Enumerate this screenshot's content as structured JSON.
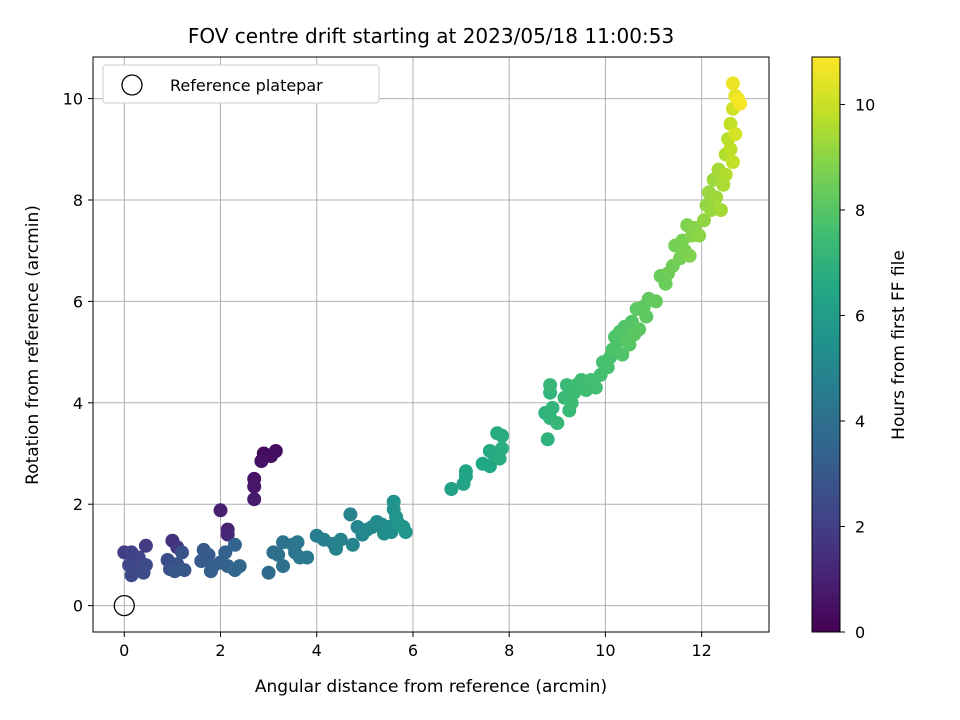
{
  "chart_data": {
    "type": "scatter",
    "title": "FOV centre drift starting at 2023/05/18 11:00:53",
    "xlabel": "Angular distance from reference (arcmin)",
    "ylabel": "Rotation from reference (arcmin)",
    "xlim": [
      -0.65,
      13.4
    ],
    "ylim": [
      -0.52,
      10.82
    ],
    "xticks": [
      0,
      2,
      4,
      6,
      8,
      10,
      12
    ],
    "yticks": [
      0,
      2,
      4,
      6,
      8,
      10
    ],
    "grid": true,
    "legend": {
      "placement": "upper-left",
      "entries": [
        "Reference platepar"
      ]
    },
    "colorbar": {
      "label": "Hours from first FF file",
      "colormap": "viridis",
      "range": [
        0,
        10.9
      ],
      "ticks": [
        0,
        2,
        4,
        6,
        8,
        10
      ]
    },
    "reference_point": {
      "x": 0,
      "y": 0,
      "label": "Reference platepar"
    },
    "series": [
      {
        "color_by": "hours",
        "points": [
          {
            "x": 2.9,
            "y": 3.0,
            "c": 0.3
          },
          {
            "x": 3.15,
            "y": 3.05,
            "c": 0.4
          },
          {
            "x": 3.05,
            "y": 2.95,
            "c": 0.4
          },
          {
            "x": 2.85,
            "y": 2.85,
            "c": 0.5
          },
          {
            "x": 2.7,
            "y": 2.5,
            "c": 0.6
          },
          {
            "x": 2.7,
            "y": 2.35,
            "c": 0.7
          },
          {
            "x": 2.7,
            "y": 2.1,
            "c": 0.8
          },
          {
            "x": 2.0,
            "y": 1.88,
            "c": 1.0
          },
          {
            "x": 2.15,
            "y": 1.5,
            "c": 1.1
          },
          {
            "x": 2.15,
            "y": 1.4,
            "c": 1.2
          },
          {
            "x": 1.0,
            "y": 1.28,
            "c": 1.5
          },
          {
            "x": 1.1,
            "y": 1.15,
            "c": 1.7
          },
          {
            "x": 0.45,
            "y": 1.18,
            "c": 1.9
          },
          {
            "x": 0.0,
            "y": 1.05,
            "c": 2.0
          },
          {
            "x": 0.15,
            "y": 1.05,
            "c": 2.1
          },
          {
            "x": 0.3,
            "y": 0.95,
            "c": 2.2
          },
          {
            "x": 0.1,
            "y": 0.8,
            "c": 2.3
          },
          {
            "x": 0.15,
            "y": 0.6,
            "c": 2.4
          },
          {
            "x": 0.3,
            "y": 0.7,
            "c": 2.4
          },
          {
            "x": 0.45,
            "y": 0.8,
            "c": 2.5
          },
          {
            "x": 0.4,
            "y": 0.65,
            "c": 2.5
          },
          {
            "x": 0.9,
            "y": 0.9,
            "c": 2.6
          },
          {
            "x": 0.95,
            "y": 0.72,
            "c": 2.7
          },
          {
            "x": 1.1,
            "y": 0.82,
            "c": 2.7
          },
          {
            "x": 1.2,
            "y": 1.05,
            "c": 2.8
          },
          {
            "x": 1.25,
            "y": 0.7,
            "c": 2.9
          },
          {
            "x": 1.05,
            "y": 0.68,
            "c": 2.9
          },
          {
            "x": 1.65,
            "y": 1.1,
            "c": 3.0
          },
          {
            "x": 1.6,
            "y": 0.88,
            "c": 3.1
          },
          {
            "x": 1.75,
            "y": 1.0,
            "c": 3.1
          },
          {
            "x": 1.85,
            "y": 0.78,
            "c": 3.2
          },
          {
            "x": 1.8,
            "y": 0.68,
            "c": 3.3
          },
          {
            "x": 2.0,
            "y": 0.85,
            "c": 3.3
          },
          {
            "x": 2.1,
            "y": 1.05,
            "c": 3.4
          },
          {
            "x": 2.15,
            "y": 0.78,
            "c": 3.4
          },
          {
            "x": 2.3,
            "y": 1.2,
            "c": 3.5
          },
          {
            "x": 2.3,
            "y": 0.7,
            "c": 3.6
          },
          {
            "x": 2.4,
            "y": 0.78,
            "c": 3.6
          },
          {
            "x": 3.0,
            "y": 0.65,
            "c": 3.8
          },
          {
            "x": 3.1,
            "y": 1.05,
            "c": 3.9
          },
          {
            "x": 3.2,
            "y": 1.0,
            "c": 4.0
          },
          {
            "x": 3.3,
            "y": 0.78,
            "c": 4.0
          },
          {
            "x": 3.3,
            "y": 1.25,
            "c": 4.1
          },
          {
            "x": 3.5,
            "y": 1.2,
            "c": 4.2
          },
          {
            "x": 3.55,
            "y": 1.05,
            "c": 4.2
          },
          {
            "x": 3.6,
            "y": 1.25,
            "c": 4.3
          },
          {
            "x": 3.65,
            "y": 0.95,
            "c": 4.3
          },
          {
            "x": 3.8,
            "y": 0.95,
            "c": 4.4
          },
          {
            "x": 4.0,
            "y": 1.38,
            "c": 4.6
          },
          {
            "x": 4.15,
            "y": 1.3,
            "c": 4.7
          },
          {
            "x": 4.35,
            "y": 1.22,
            "c": 4.7
          },
          {
            "x": 4.4,
            "y": 1.12,
            "c": 4.8
          },
          {
            "x": 4.5,
            "y": 1.3,
            "c": 4.8
          },
          {
            "x": 4.7,
            "y": 1.8,
            "c": 4.9
          },
          {
            "x": 4.75,
            "y": 1.2,
            "c": 4.9
          },
          {
            "x": 4.85,
            "y": 1.55,
            "c": 5.0
          },
          {
            "x": 4.95,
            "y": 1.4,
            "c": 5.0
          },
          {
            "x": 5.05,
            "y": 1.5,
            "c": 5.1
          },
          {
            "x": 5.15,
            "y": 1.55,
            "c": 5.1
          },
          {
            "x": 5.25,
            "y": 1.65,
            "c": 5.2
          },
          {
            "x": 5.35,
            "y": 1.6,
            "c": 5.2
          },
          {
            "x": 5.4,
            "y": 1.42,
            "c": 5.3
          },
          {
            "x": 5.5,
            "y": 1.55,
            "c": 5.3
          },
          {
            "x": 5.55,
            "y": 1.45,
            "c": 5.4
          },
          {
            "x": 5.6,
            "y": 2.05,
            "c": 5.5
          },
          {
            "x": 5.6,
            "y": 1.9,
            "c": 5.5
          },
          {
            "x": 5.65,
            "y": 1.75,
            "c": 5.6
          },
          {
            "x": 5.7,
            "y": 1.62,
            "c": 5.6
          },
          {
            "x": 5.8,
            "y": 1.55,
            "c": 5.7
          },
          {
            "x": 5.85,
            "y": 1.45,
            "c": 5.7
          },
          {
            "x": 6.8,
            "y": 2.3,
            "c": 6.2
          },
          {
            "x": 7.05,
            "y": 2.4,
            "c": 6.3
          },
          {
            "x": 7.1,
            "y": 2.55,
            "c": 6.3
          },
          {
            "x": 7.1,
            "y": 2.65,
            "c": 6.4
          },
          {
            "x": 7.45,
            "y": 2.8,
            "c": 6.5
          },
          {
            "x": 7.6,
            "y": 2.75,
            "c": 6.5
          },
          {
            "x": 7.6,
            "y": 3.05,
            "c": 6.6
          },
          {
            "x": 7.7,
            "y": 2.95,
            "c": 6.6
          },
          {
            "x": 7.75,
            "y": 3.4,
            "c": 6.7
          },
          {
            "x": 7.85,
            "y": 3.35,
            "c": 6.7
          },
          {
            "x": 7.85,
            "y": 3.1,
            "c": 6.8
          },
          {
            "x": 7.8,
            "y": 2.9,
            "c": 6.8
          },
          {
            "x": 8.8,
            "y": 3.28,
            "c": 7.0
          },
          {
            "x": 8.75,
            "y": 3.8,
            "c": 7.0
          },
          {
            "x": 8.85,
            "y": 3.7,
            "c": 7.1
          },
          {
            "x": 8.9,
            "y": 3.9,
            "c": 7.1
          },
          {
            "x": 8.85,
            "y": 4.2,
            "c": 7.1
          },
          {
            "x": 8.85,
            "y": 4.35,
            "c": 7.2
          },
          {
            "x": 9.0,
            "y": 3.6,
            "c": 7.2
          },
          {
            "x": 9.15,
            "y": 4.1,
            "c": 7.3
          },
          {
            "x": 9.2,
            "y": 4.35,
            "c": 7.3
          },
          {
            "x": 9.25,
            "y": 3.85,
            "c": 7.3
          },
          {
            "x": 9.3,
            "y": 4.0,
            "c": 7.4
          },
          {
            "x": 9.35,
            "y": 4.2,
            "c": 7.4
          },
          {
            "x": 9.4,
            "y": 4.35,
            "c": 7.4
          },
          {
            "x": 9.5,
            "y": 4.45,
            "c": 7.5
          },
          {
            "x": 9.6,
            "y": 4.25,
            "c": 7.5
          },
          {
            "x": 9.7,
            "y": 4.45,
            "c": 7.6
          },
          {
            "x": 9.8,
            "y": 4.3,
            "c": 7.6
          },
          {
            "x": 9.9,
            "y": 4.55,
            "c": 7.6
          },
          {
            "x": 9.95,
            "y": 4.8,
            "c": 7.7
          },
          {
            "x": 10.05,
            "y": 4.7,
            "c": 7.7
          },
          {
            "x": 10.1,
            "y": 4.9,
            "c": 7.7
          },
          {
            "x": 10.15,
            "y": 5.05,
            "c": 7.8
          },
          {
            "x": 10.2,
            "y": 5.3,
            "c": 7.8
          },
          {
            "x": 10.25,
            "y": 5.2,
            "c": 7.8
          },
          {
            "x": 10.3,
            "y": 5.4,
            "c": 7.9
          },
          {
            "x": 10.35,
            "y": 4.95,
            "c": 7.9
          },
          {
            "x": 10.4,
            "y": 5.5,
            "c": 7.9
          },
          {
            "x": 10.45,
            "y": 5.25,
            "c": 8.0
          },
          {
            "x": 10.5,
            "y": 5.15,
            "c": 8.0
          },
          {
            "x": 10.55,
            "y": 5.6,
            "c": 8.0
          },
          {
            "x": 10.6,
            "y": 5.35,
            "c": 8.1
          },
          {
            "x": 10.65,
            "y": 5.85,
            "c": 8.1
          },
          {
            "x": 10.7,
            "y": 5.45,
            "c": 8.1
          },
          {
            "x": 10.8,
            "y": 5.9,
            "c": 8.2
          },
          {
            "x": 10.85,
            "y": 5.7,
            "c": 8.2
          },
          {
            "x": 10.9,
            "y": 6.05,
            "c": 8.2
          },
          {
            "x": 11.05,
            "y": 6.0,
            "c": 8.3
          },
          {
            "x": 11.15,
            "y": 6.5,
            "c": 8.4
          },
          {
            "x": 11.25,
            "y": 6.35,
            "c": 8.4
          },
          {
            "x": 11.3,
            "y": 6.55,
            "c": 8.5
          },
          {
            "x": 11.4,
            "y": 6.7,
            "c": 8.5
          },
          {
            "x": 11.45,
            "y": 7.1,
            "c": 8.6
          },
          {
            "x": 11.55,
            "y": 6.85,
            "c": 8.6
          },
          {
            "x": 11.6,
            "y": 7.2,
            "c": 8.7
          },
          {
            "x": 11.65,
            "y": 7.0,
            "c": 8.7
          },
          {
            "x": 11.7,
            "y": 7.5,
            "c": 8.8
          },
          {
            "x": 11.75,
            "y": 6.9,
            "c": 8.8
          },
          {
            "x": 11.8,
            "y": 7.3,
            "c": 8.9
          },
          {
            "x": 11.85,
            "y": 7.45,
            "c": 8.9
          },
          {
            "x": 11.95,
            "y": 7.3,
            "c": 9.0
          },
          {
            "x": 12.05,
            "y": 7.6,
            "c": 9.1
          },
          {
            "x": 12.1,
            "y": 7.9,
            "c": 9.1
          },
          {
            "x": 12.15,
            "y": 8.15,
            "c": 9.2
          },
          {
            "x": 12.2,
            "y": 7.8,
            "c": 9.2
          },
          {
            "x": 12.25,
            "y": 8.4,
            "c": 9.3
          },
          {
            "x": 12.3,
            "y": 8.05,
            "c": 9.3
          },
          {
            "x": 12.35,
            "y": 8.6,
            "c": 9.4
          },
          {
            "x": 12.4,
            "y": 7.8,
            "c": 9.4
          },
          {
            "x": 12.45,
            "y": 8.3,
            "c": 9.5
          },
          {
            "x": 12.5,
            "y": 8.9,
            "c": 9.6
          },
          {
            "x": 12.5,
            "y": 8.5,
            "c": 9.6
          },
          {
            "x": 12.55,
            "y": 9.2,
            "c": 9.7
          },
          {
            "x": 12.6,
            "y": 9.0,
            "c": 9.8
          },
          {
            "x": 12.6,
            "y": 9.5,
            "c": 9.9
          },
          {
            "x": 12.65,
            "y": 8.75,
            "c": 9.9
          },
          {
            "x": 12.65,
            "y": 9.8,
            "c": 10.1
          },
          {
            "x": 12.7,
            "y": 9.3,
            "c": 10.2
          },
          {
            "x": 12.7,
            "y": 10.05,
            "c": 10.4
          },
          {
            "x": 12.65,
            "y": 10.3,
            "c": 10.6
          },
          {
            "x": 12.75,
            "y": 10.0,
            "c": 10.7
          },
          {
            "x": 12.8,
            "y": 9.9,
            "c": 10.8
          }
        ]
      }
    ]
  }
}
